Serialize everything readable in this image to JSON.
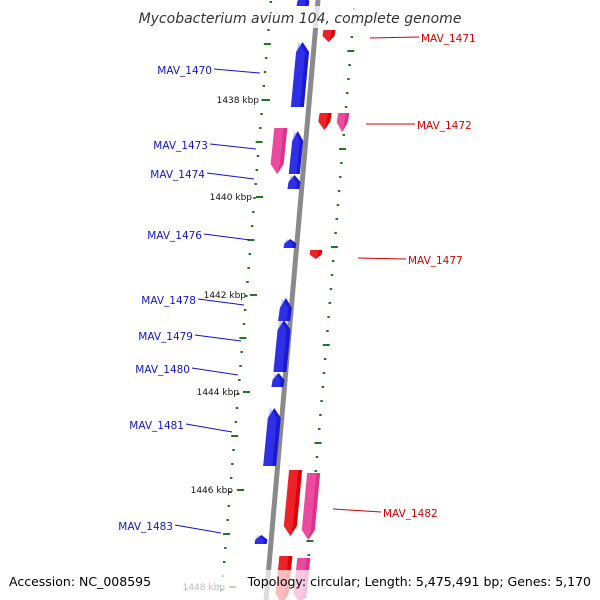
{
  "title": "Mycobacterium avium 104, complete genome",
  "accession": "Accession: NC_008595",
  "summary": "Topology: circular; Length: 5,475,491 bp; Genes: 5,170",
  "colors": {
    "backbone": "#8a8a8a",
    "forward_cds": "#1a1ad6",
    "reverse_cds": "#e0000a",
    "reverse_feature": "#e0308c",
    "tick": "#1f7a1f",
    "left_label": "#1414c8",
    "right_label": "#d40000"
  },
  "kbp_ticks": [
    {
      "id": "tick-1438",
      "label": "1438 kbp"
    },
    {
      "id": "tick-1440",
      "label": "1440 kbp"
    },
    {
      "id": "tick-1442",
      "label": "1442 kbp"
    },
    {
      "id": "tick-1444",
      "label": "1444 kbp"
    },
    {
      "id": "tick-1446",
      "label": "1446 kbp"
    },
    {
      "id": "tick-1448",
      "label": "1448 kbp"
    }
  ],
  "gene_labels": [
    {
      "id": "MAV_1470",
      "text": "MAV_1470",
      "strand": "forward"
    },
    {
      "id": "MAV_1471",
      "text": "MAV_1471",
      "strand": "reverse"
    },
    {
      "id": "MAV_1472",
      "text": "MAV_1472",
      "strand": "reverse"
    },
    {
      "id": "MAV_1473",
      "text": "MAV_1473",
      "strand": "forward"
    },
    {
      "id": "MAV_1474",
      "text": "MAV_1474",
      "strand": "forward"
    },
    {
      "id": "MAV_1476",
      "text": "MAV_1476",
      "strand": "forward"
    },
    {
      "id": "MAV_1477",
      "text": "MAV_1477",
      "strand": "reverse"
    },
    {
      "id": "MAV_1478",
      "text": "MAV_1478",
      "strand": "forward"
    },
    {
      "id": "MAV_1479",
      "text": "MAV_1479",
      "strand": "forward"
    },
    {
      "id": "MAV_1480",
      "text": "MAV_1480",
      "strand": "forward"
    },
    {
      "id": "MAV_1481",
      "text": "MAV_1481",
      "strand": "forward"
    },
    {
      "id": "MAV_1482",
      "text": "MAV_1482",
      "strand": "reverse"
    },
    {
      "id": "MAV_1483",
      "text": "MAV_1483",
      "strand": "forward"
    }
  ]
}
